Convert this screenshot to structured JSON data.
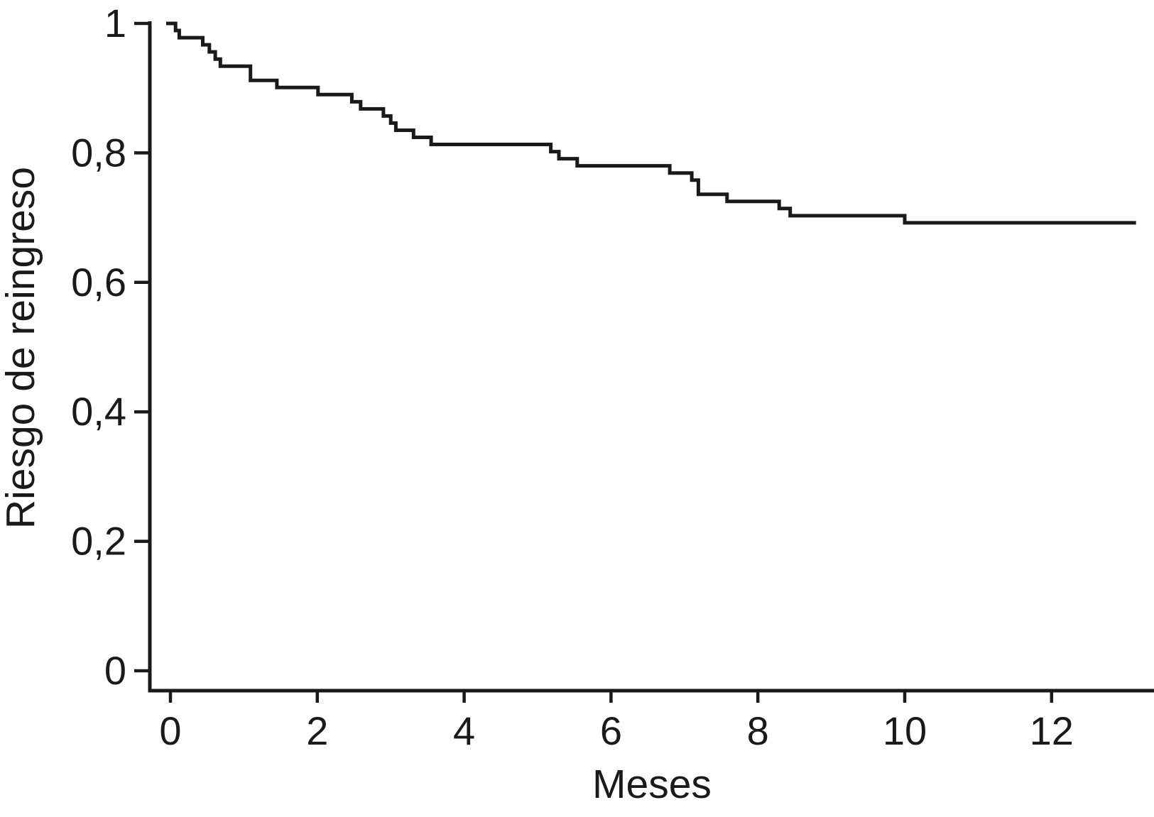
{
  "figure": {
    "background": "#ffffff",
    "axis_color": "#1a1a1a",
    "text_color": "#1a1a1a",
    "curve_color": "#1a1a1a"
  },
  "chart_data": {
    "type": "line",
    "subtype": "kaplan-meier-step",
    "title": "",
    "xlabel": "Meses",
    "ylabel": "Riesgo de reingreso",
    "xlim": [
      0,
      13.4
    ],
    "ylim": [
      0,
      1
    ],
    "x_ticks": [
      0,
      2,
      4,
      6,
      8,
      10,
      12
    ],
    "x_tick_labels": [
      "0",
      "2",
      "4",
      "6",
      "8",
      "10",
      "12"
    ],
    "y_ticks": [
      1,
      0.8,
      0.6,
      0.4,
      0.2,
      0
    ],
    "y_tick_labels": [
      "1",
      "0,8",
      "0,6",
      "0,4",
      "0,2",
      "0"
    ],
    "grid": false,
    "legend_position": "none",
    "series": [
      {
        "name": "Riesgo de reingreso",
        "curve_end_month": 13.15,
        "steps": [
          [
            0.0,
            1.0
          ],
          [
            0.07,
            0.989
          ],
          [
            0.12,
            0.978
          ],
          [
            0.44,
            0.967
          ],
          [
            0.53,
            0.956
          ],
          [
            0.61,
            0.945
          ],
          [
            0.68,
            0.934
          ],
          [
            1.09,
            0.912
          ],
          [
            1.45,
            0.901
          ],
          [
            2.01,
            0.89
          ],
          [
            2.47,
            0.879
          ],
          [
            2.59,
            0.868
          ],
          [
            2.9,
            0.857
          ],
          [
            3.0,
            0.846
          ],
          [
            3.07,
            0.835
          ],
          [
            3.31,
            0.824
          ],
          [
            3.55,
            0.813
          ],
          [
            5.18,
            0.802
          ],
          [
            5.29,
            0.791
          ],
          [
            5.54,
            0.78
          ],
          [
            6.8,
            0.769
          ],
          [
            7.1,
            0.758
          ],
          [
            7.19,
            0.736
          ],
          [
            7.58,
            0.725
          ],
          [
            8.29,
            0.714
          ],
          [
            8.44,
            0.703
          ],
          [
            10.0,
            0.692
          ]
        ]
      }
    ]
  }
}
